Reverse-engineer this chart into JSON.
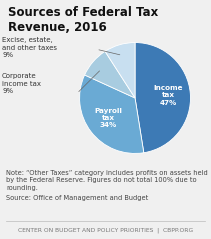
{
  "title": "Sources of Federal Tax\nRevenue, 2016",
  "slices": [
    {
      "label": "Income\ntax\n47%",
      "pct": 47,
      "color": "#3d7ab5",
      "text_color": "#ffffff",
      "label_inside": true
    },
    {
      "label": "Payroll\ntax\n34%",
      "pct": 34,
      "color": "#6aaad4",
      "text_color": "#ffffff",
      "label_inside": true
    },
    {
      "label": "Corporate\nincome tax\n9%",
      "pct": 9,
      "color": "#a8cce0",
      "text_color": null,
      "label_inside": false
    },
    {
      "label": "Excise, estate,\nand other taxes\n9%",
      "pct": 9,
      "color": "#c8dff0",
      "text_color": null,
      "label_inside": false
    }
  ],
  "note": "Note: “Other Taxes” category includes profits on assets held\nby the Federal Reserve. Figures do not total 100% due to\nrounding.",
  "source": "Source: Office of Management and Budget",
  "footer": "CENTER ON BUDGET AND POLICY PRIORITIES  |  CBPP.ORG",
  "title_fontsize": 8.5,
  "label_fontsize": 5.2,
  "ext_label_fontsize": 5.0,
  "note_fontsize": 4.8,
  "footer_fontsize": 4.3,
  "background_color": "#f0f0f0"
}
